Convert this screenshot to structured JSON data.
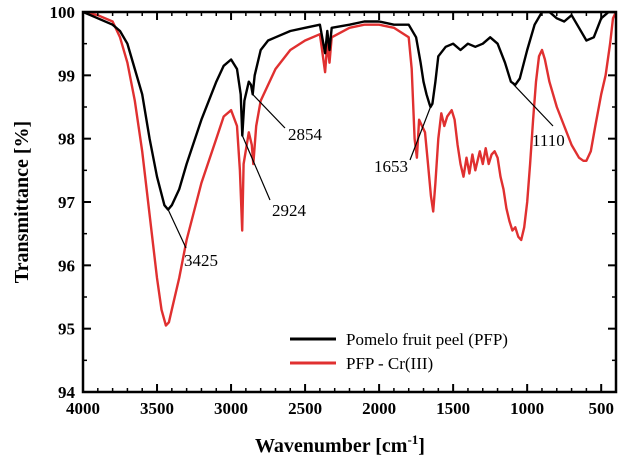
{
  "chart_data": {
    "type": "line",
    "title": "",
    "xlabel": "Wavenumber [cm",
    "xlabel_sup": "-1",
    "xlabel_suffix": "]",
    "ylabel": "Transmittance [%]",
    "xlim": [
      4000,
      400
    ],
    "ylim": [
      94,
      100
    ],
    "x_reversed": true,
    "xticks": [
      4000,
      3500,
      3000,
      2500,
      2000,
      1500,
      1000,
      500
    ],
    "yticks": [
      94,
      95,
      96,
      97,
      98,
      99,
      100
    ],
    "grid": false,
    "legend_position": "bottom-center",
    "series": [
      {
        "name": "Pomelo fruit peel (PFP)",
        "color": "#000000",
        "points": [
          [
            4000,
            100.0
          ],
          [
            3900,
            99.9
          ],
          [
            3800,
            99.8
          ],
          [
            3750,
            99.7
          ],
          [
            3700,
            99.5
          ],
          [
            3650,
            99.1
          ],
          [
            3600,
            98.7
          ],
          [
            3550,
            98.0
          ],
          [
            3500,
            97.4
          ],
          [
            3450,
            96.95
          ],
          [
            3425,
            96.88
          ],
          [
            3400,
            96.95
          ],
          [
            3350,
            97.2
          ],
          [
            3300,
            97.6
          ],
          [
            3200,
            98.3
          ],
          [
            3100,
            98.9
          ],
          [
            3050,
            99.15
          ],
          [
            3000,
            99.25
          ],
          [
            2960,
            99.1
          ],
          [
            2935,
            98.7
          ],
          [
            2924,
            98.05
          ],
          [
            2910,
            98.6
          ],
          [
            2880,
            98.9
          ],
          [
            2865,
            98.85
          ],
          [
            2854,
            98.7
          ],
          [
            2840,
            99.0
          ],
          [
            2800,
            99.4
          ],
          [
            2750,
            99.55
          ],
          [
            2700,
            99.6
          ],
          [
            2600,
            99.7
          ],
          [
            2500,
            99.75
          ],
          [
            2400,
            99.8
          ],
          [
            2365,
            99.35
          ],
          [
            2350,
            99.7
          ],
          [
            2335,
            99.4
          ],
          [
            2320,
            99.75
          ],
          [
            2200,
            99.8
          ],
          [
            2100,
            99.85
          ],
          [
            2000,
            99.85
          ],
          [
            1900,
            99.8
          ],
          [
            1800,
            99.8
          ],
          [
            1750,
            99.6
          ],
          [
            1720,
            99.2
          ],
          [
            1700,
            98.9
          ],
          [
            1680,
            98.7
          ],
          [
            1660,
            98.55
          ],
          [
            1653,
            98.5
          ],
          [
            1640,
            98.55
          ],
          [
            1620,
            98.9
          ],
          [
            1600,
            99.3
          ],
          [
            1550,
            99.45
          ],
          [
            1500,
            99.5
          ],
          [
            1450,
            99.4
          ],
          [
            1400,
            99.5
          ],
          [
            1350,
            99.45
          ],
          [
            1300,
            99.5
          ],
          [
            1250,
            99.6
          ],
          [
            1200,
            99.5
          ],
          [
            1150,
            99.2
          ],
          [
            1110,
            98.9
          ],
          [
            1080,
            98.85
          ],
          [
            1050,
            98.95
          ],
          [
            1000,
            99.4
          ],
          [
            950,
            99.8
          ],
          [
            900,
            100.0
          ],
          [
            850,
            100.0
          ],
          [
            800,
            99.9
          ],
          [
            750,
            99.85
          ],
          [
            700,
            99.95
          ],
          [
            650,
            99.75
          ],
          [
            600,
            99.55
          ],
          [
            550,
            99.6
          ],
          [
            500,
            99.9
          ],
          [
            450,
            100.0
          ],
          [
            400,
            100.0
          ]
        ]
      },
      {
        "name": "PFP - Cr(III)",
        "color": "#e03030",
        "points": [
          [
            4000,
            100.0
          ],
          [
            3900,
            99.95
          ],
          [
            3800,
            99.85
          ],
          [
            3750,
            99.6
          ],
          [
            3700,
            99.2
          ],
          [
            3650,
            98.6
          ],
          [
            3600,
            97.8
          ],
          [
            3550,
            96.8
          ],
          [
            3500,
            95.8
          ],
          [
            3470,
            95.3
          ],
          [
            3440,
            95.05
          ],
          [
            3420,
            95.1
          ],
          [
            3400,
            95.3
          ],
          [
            3350,
            95.8
          ],
          [
            3300,
            96.4
          ],
          [
            3200,
            97.3
          ],
          [
            3100,
            98.0
          ],
          [
            3050,
            98.35
          ],
          [
            3000,
            98.45
          ],
          [
            2960,
            98.2
          ],
          [
            2940,
            97.5
          ],
          [
            2925,
            96.55
          ],
          [
            2915,
            97.6
          ],
          [
            2880,
            98.1
          ],
          [
            2860,
            97.9
          ],
          [
            2850,
            97.6
          ],
          [
            2830,
            98.2
          ],
          [
            2800,
            98.6
          ],
          [
            2700,
            99.1
          ],
          [
            2600,
            99.4
          ],
          [
            2500,
            99.55
          ],
          [
            2400,
            99.65
          ],
          [
            2365,
            99.05
          ],
          [
            2350,
            99.5
          ],
          [
            2335,
            99.2
          ],
          [
            2320,
            99.6
          ],
          [
            2200,
            99.75
          ],
          [
            2100,
            99.8
          ],
          [
            2000,
            99.8
          ],
          [
            1900,
            99.75
          ],
          [
            1800,
            99.6
          ],
          [
            1780,
            99.1
          ],
          [
            1760,
            98.0
          ],
          [
            1745,
            97.7
          ],
          [
            1730,
            98.3
          ],
          [
            1710,
            98.2
          ],
          [
            1690,
            98.1
          ],
          [
            1670,
            97.6
          ],
          [
            1650,
            97.1
          ],
          [
            1635,
            96.85
          ],
          [
            1620,
            97.3
          ],
          [
            1600,
            98.0
          ],
          [
            1580,
            98.4
          ],
          [
            1560,
            98.2
          ],
          [
            1540,
            98.35
          ],
          [
            1510,
            98.45
          ],
          [
            1490,
            98.3
          ],
          [
            1470,
            97.9
          ],
          [
            1450,
            97.6
          ],
          [
            1430,
            97.4
          ],
          [
            1410,
            97.7
          ],
          [
            1390,
            97.45
          ],
          [
            1370,
            97.75
          ],
          [
            1350,
            97.5
          ],
          [
            1320,
            97.8
          ],
          [
            1300,
            97.6
          ],
          [
            1280,
            97.85
          ],
          [
            1260,
            97.6
          ],
          [
            1240,
            97.75
          ],
          [
            1220,
            97.8
          ],
          [
            1200,
            97.7
          ],
          [
            1180,
            97.4
          ],
          [
            1160,
            97.2
          ],
          [
            1140,
            96.9
          ],
          [
            1120,
            96.7
          ],
          [
            1100,
            96.55
          ],
          [
            1080,
            96.6
          ],
          [
            1060,
            96.45
          ],
          [
            1040,
            96.4
          ],
          [
            1020,
            96.6
          ],
          [
            1000,
            97.0
          ],
          [
            980,
            97.6
          ],
          [
            960,
            98.3
          ],
          [
            940,
            98.9
          ],
          [
            920,
            99.3
          ],
          [
            900,
            99.4
          ],
          [
            880,
            99.25
          ],
          [
            850,
            98.9
          ],
          [
            800,
            98.5
          ],
          [
            750,
            98.2
          ],
          [
            700,
            97.9
          ],
          [
            650,
            97.7
          ],
          [
            620,
            97.65
          ],
          [
            600,
            97.65
          ],
          [
            570,
            97.8
          ],
          [
            540,
            98.2
          ],
          [
            500,
            98.7
          ],
          [
            470,
            99.0
          ],
          [
            440,
            99.5
          ],
          [
            420,
            99.9
          ],
          [
            400,
            100.0
          ]
        ]
      }
    ],
    "annotations": [
      {
        "label": "3425"
      },
      {
        "label": "2924"
      },
      {
        "label": "2854"
      },
      {
        "label": "1653"
      },
      {
        "label": "1110"
      }
    ]
  }
}
